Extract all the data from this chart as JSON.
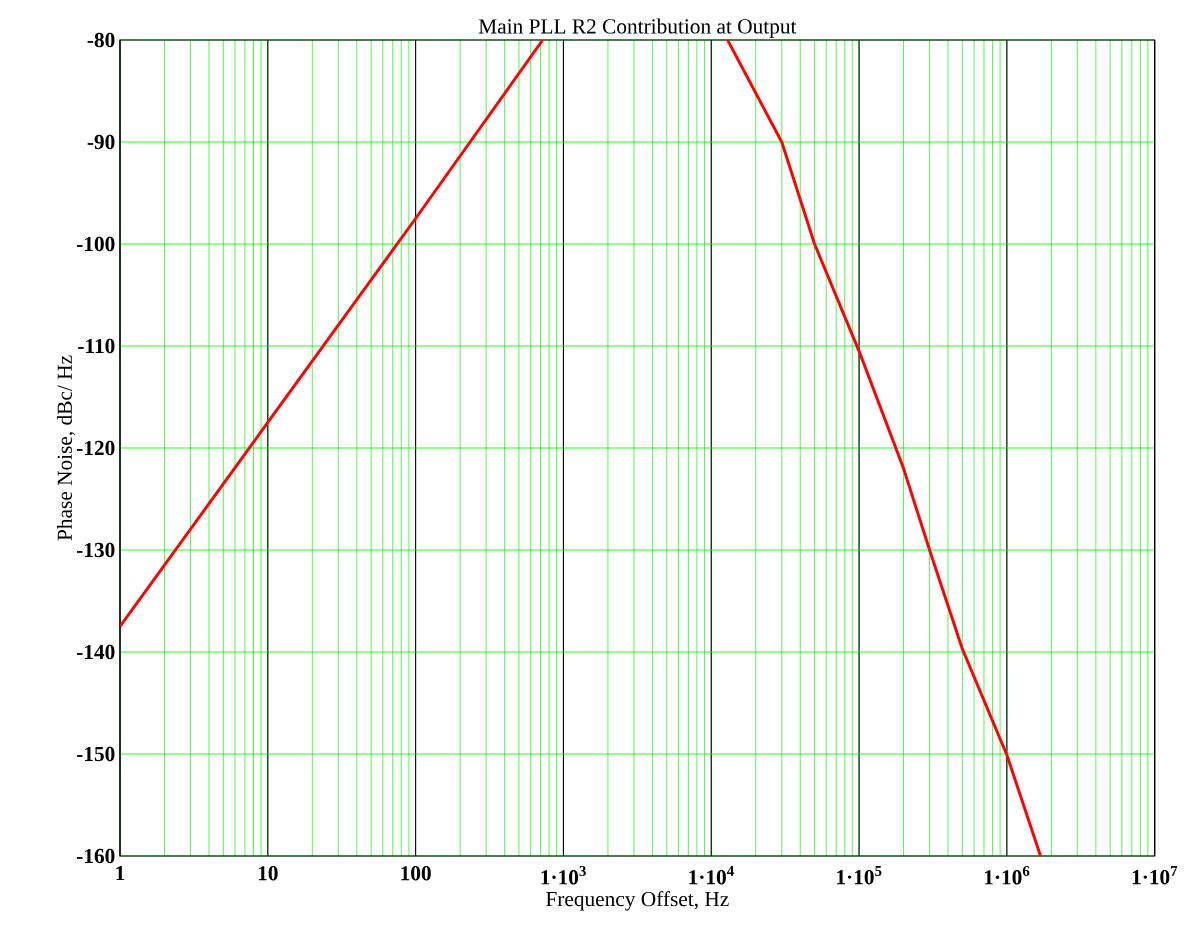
{
  "chart_data": {
    "type": "line",
    "title": "Main PLL R2 Contribution at Output",
    "xlabel": "Frequency Offset, Hz",
    "ylabel": "Phase Noise, dBc/ Hz",
    "log": "x",
    "grid": true,
    "xlim": [
      1,
      10000000
    ],
    "ylim": [
      -160,
      -80
    ],
    "xticks": [
      1,
      10,
      100,
      {
        "value": 1000,
        "label": "1·10$^{3}$"
      },
      {
        "value": 10000,
        "label": "1·10$^{4}$"
      },
      {
        "value": 100000,
        "label": "1·10$^{5}$"
      },
      {
        "value": 1000000,
        "label": "1·10$^{6}$"
      },
      {
        "value": 10000000,
        "label": "1·10$^{7}$"
      }
    ],
    "yticks": [
      -160,
      -150,
      -140,
      -130,
      -120,
      -110,
      -100,
      -90,
      -80
    ],
    "series": [
      {
        "color": "#ff0000",
        "x": [
          1,
          10,
          100,
          724,
          3000,
          12900,
          20000,
          30000,
          50000,
          100000,
          200000,
          300000,
          500000,
          1000000,
          1690000
        ],
        "values": [
          -137.5,
          -117.5,
          -97.5,
          -80,
          null,
          -80,
          -85.2,
          -90,
          -100,
          -110.5,
          -122,
          -130,
          -139.7,
          -150.1,
          -160
        ]
      }
    ]
  }
}
